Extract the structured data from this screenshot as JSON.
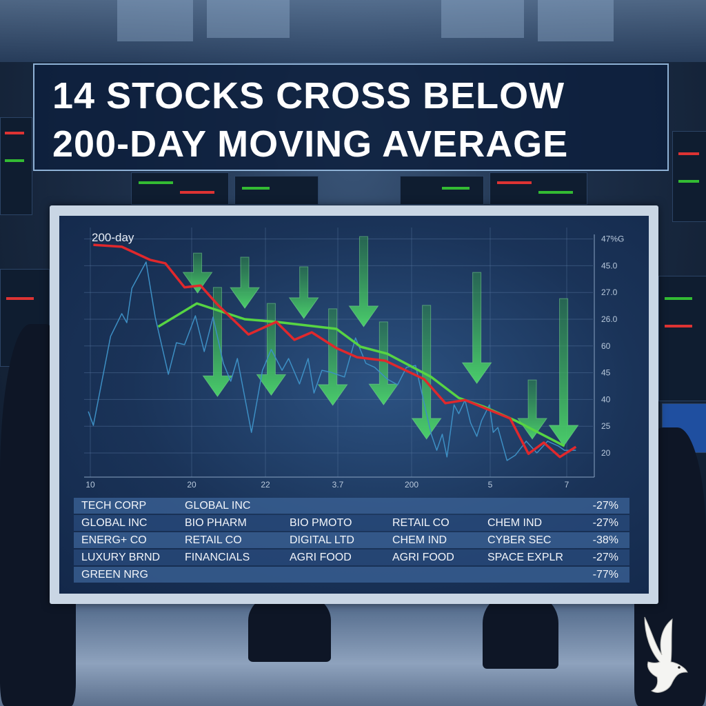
{
  "headline": {
    "line1": "14 STOCKS CROSS BELOW",
    "line2": "200-DAY MOVING AVERAGE"
  },
  "colors": {
    "price_line": "#3d8fc4",
    "moving_average_red": "#e0282c",
    "moving_average_green": "#57d443",
    "arrows": "#3fbf5a",
    "title_border": "#8fb2d6"
  },
  "chart_data": {
    "type": "line",
    "annotation": "200-day",
    "x_ticks": [
      "10",
      "20",
      "22",
      "3.7",
      "200",
      "5",
      "7"
    ],
    "y_ticks": [
      "20",
      "25",
      "40",
      "45",
      "60",
      "26.0",
      "27.0",
      "45.0",
      "47%G"
    ],
    "y_axis_side": "right",
    "grid": true,
    "series": [
      {
        "color": "#e0282c",
        "points": [
          [
            0.03,
            7.78
          ],
          [
            0.31,
            7.71
          ],
          [
            0.59,
            7.22
          ],
          [
            0.74,
            7.09
          ],
          [
            0.93,
            6.19
          ],
          [
            1.12,
            6.26
          ],
          [
            1.36,
            5.52
          ],
          [
            1.77,
            4.43
          ],
          [
            2.15,
            4.9
          ],
          [
            2.4,
            4.23
          ],
          [
            2.64,
            4.51
          ],
          [
            2.98,
            3.92
          ],
          [
            3.26,
            3.58
          ],
          [
            3.64,
            3.45
          ],
          [
            4.16,
            2.76
          ],
          [
            4.43,
            1.86
          ],
          [
            4.68,
            1.98
          ],
          [
            5.26,
            1.29
          ],
          [
            5.5,
            -0.03
          ],
          [
            5.7,
            0.39
          ],
          [
            5.91,
            -0.15
          ],
          [
            6.12,
            0.23
          ]
        ]
      },
      {
        "color": "#57d443",
        "points": [
          [
            0.67,
            4.72
          ],
          [
            1.07,
            5.59
          ],
          [
            1.72,
            5.0
          ],
          [
            2.15,
            4.9
          ],
          [
            2.98,
            4.64
          ],
          [
            3.31,
            3.97
          ],
          [
            3.67,
            3.71
          ],
          [
            4.25,
            2.84
          ],
          [
            4.6,
            2.06
          ],
          [
            4.92,
            1.73
          ],
          [
            5.33,
            1.21
          ],
          [
            5.97,
            0.26
          ]
        ]
      },
      {
        "color": "#3d8fc4",
        "points": [
          [
            -0.02,
            1.55
          ],
          [
            0.03,
            1.03
          ],
          [
            0.2,
            4.36
          ],
          [
            0.26,
            4.82
          ],
          [
            0.31,
            5.21
          ],
          [
            0.36,
            4.87
          ],
          [
            0.41,
            6.16
          ],
          [
            0.55,
            7.14
          ],
          [
            0.64,
            5.08
          ],
          [
            0.77,
            2.94
          ],
          [
            0.85,
            4.12
          ],
          [
            0.93,
            4.05
          ],
          [
            1.05,
            5.13
          ],
          [
            1.17,
            3.79
          ],
          [
            1.29,
            5.08
          ],
          [
            1.43,
            3.35
          ],
          [
            1.53,
            2.68
          ],
          [
            1.62,
            3.53
          ],
          [
            1.81,
            0.77
          ],
          [
            1.96,
            3.09
          ],
          [
            2.08,
            3.87
          ],
          [
            2.23,
            3.09
          ],
          [
            2.32,
            3.53
          ],
          [
            2.47,
            2.58
          ],
          [
            2.59,
            3.53
          ],
          [
            2.67,
            2.24
          ],
          [
            2.78,
            3.09
          ],
          [
            2.9,
            3.02
          ],
          [
            3.09,
            2.84
          ],
          [
            3.24,
            4.3
          ],
          [
            3.38,
            3.35
          ],
          [
            3.5,
            3.2
          ],
          [
            3.67,
            2.76
          ],
          [
            3.81,
            2.55
          ],
          [
            3.93,
            3.2
          ],
          [
            4.05,
            3.27
          ],
          [
            4.25,
            0.7
          ],
          [
            4.32,
            0.1
          ],
          [
            4.39,
            0.7
          ],
          [
            4.45,
            -0.15
          ],
          [
            4.54,
            1.8
          ],
          [
            4.6,
            1.47
          ],
          [
            4.68,
            1.98
          ],
          [
            4.75,
            1.13
          ],
          [
            4.83,
            0.62
          ],
          [
            4.89,
            1.21
          ],
          [
            4.99,
            1.8
          ],
          [
            5.04,
            0.77
          ],
          [
            5.1,
            0.95
          ],
          [
            5.22,
            -0.28
          ],
          [
            5.33,
            -0.08
          ],
          [
            5.47,
            0.44
          ],
          [
            5.61,
            0.0
          ],
          [
            5.75,
            0.44
          ],
          [
            5.89,
            0.26
          ],
          [
            5.97,
            0.1
          ],
          [
            6.12,
            0.1
          ]
        ]
      }
    ],
    "down_arrows": [
      {
        "x": 1.08,
        "from": 7.47,
        "to": 5.98
      },
      {
        "x": 1.72,
        "from": 7.32,
        "to": 5.41
      },
      {
        "x": 2.53,
        "from": 6.96,
        "to": 5.03
      },
      {
        "x": 3.35,
        "from": 8.09,
        "to": 4.72
      },
      {
        "x": 1.35,
        "from": 6.19,
        "to": 2.11
      },
      {
        "x": 2.08,
        "from": 5.59,
        "to": 2.16
      },
      {
        "x": 2.93,
        "from": 5.39,
        "to": 1.78
      },
      {
        "x": 3.62,
        "from": 4.9,
        "to": 1.8
      },
      {
        "x": 4.19,
        "from": 5.52,
        "to": 0.52
      },
      {
        "x": 4.83,
        "from": 6.75,
        "to": 2.6
      },
      {
        "x": 5.55,
        "from": 2.73,
        "to": 0.52
      },
      {
        "x": 5.96,
        "from": 5.77,
        "to": 0.26
      }
    ]
  },
  "table": {
    "rows": [
      {
        "cells": [
          "TECH CORP",
          "GLOBAL INC",
          "",
          "",
          ""
        ],
        "change": "-27%"
      },
      {
        "cells": [
          "GLOBAL INC",
          "BIO PHARM",
          "BIO PMOTO",
          "RETAIL CO",
          "CHEM IND"
        ],
        "change": "-27%"
      },
      {
        "cells": [
          "ENERG+ CO",
          "RETAIL CO",
          "DIGITAL LTD",
          "CHEM IND",
          "CYBER SEC"
        ],
        "change": "-38%"
      },
      {
        "cells": [
          "LUXURY BRND",
          "FINANCIALS",
          "AGRI FOOD",
          "AGRI FOOD",
          "SPACE EXPLR"
        ],
        "change": "-27%"
      },
      {
        "cells": [
          "GREEN NRG",
          "",
          "",
          "",
          ""
        ],
        "change": "-77%"
      }
    ]
  },
  "logo": {
    "icon": "dove-icon"
  }
}
